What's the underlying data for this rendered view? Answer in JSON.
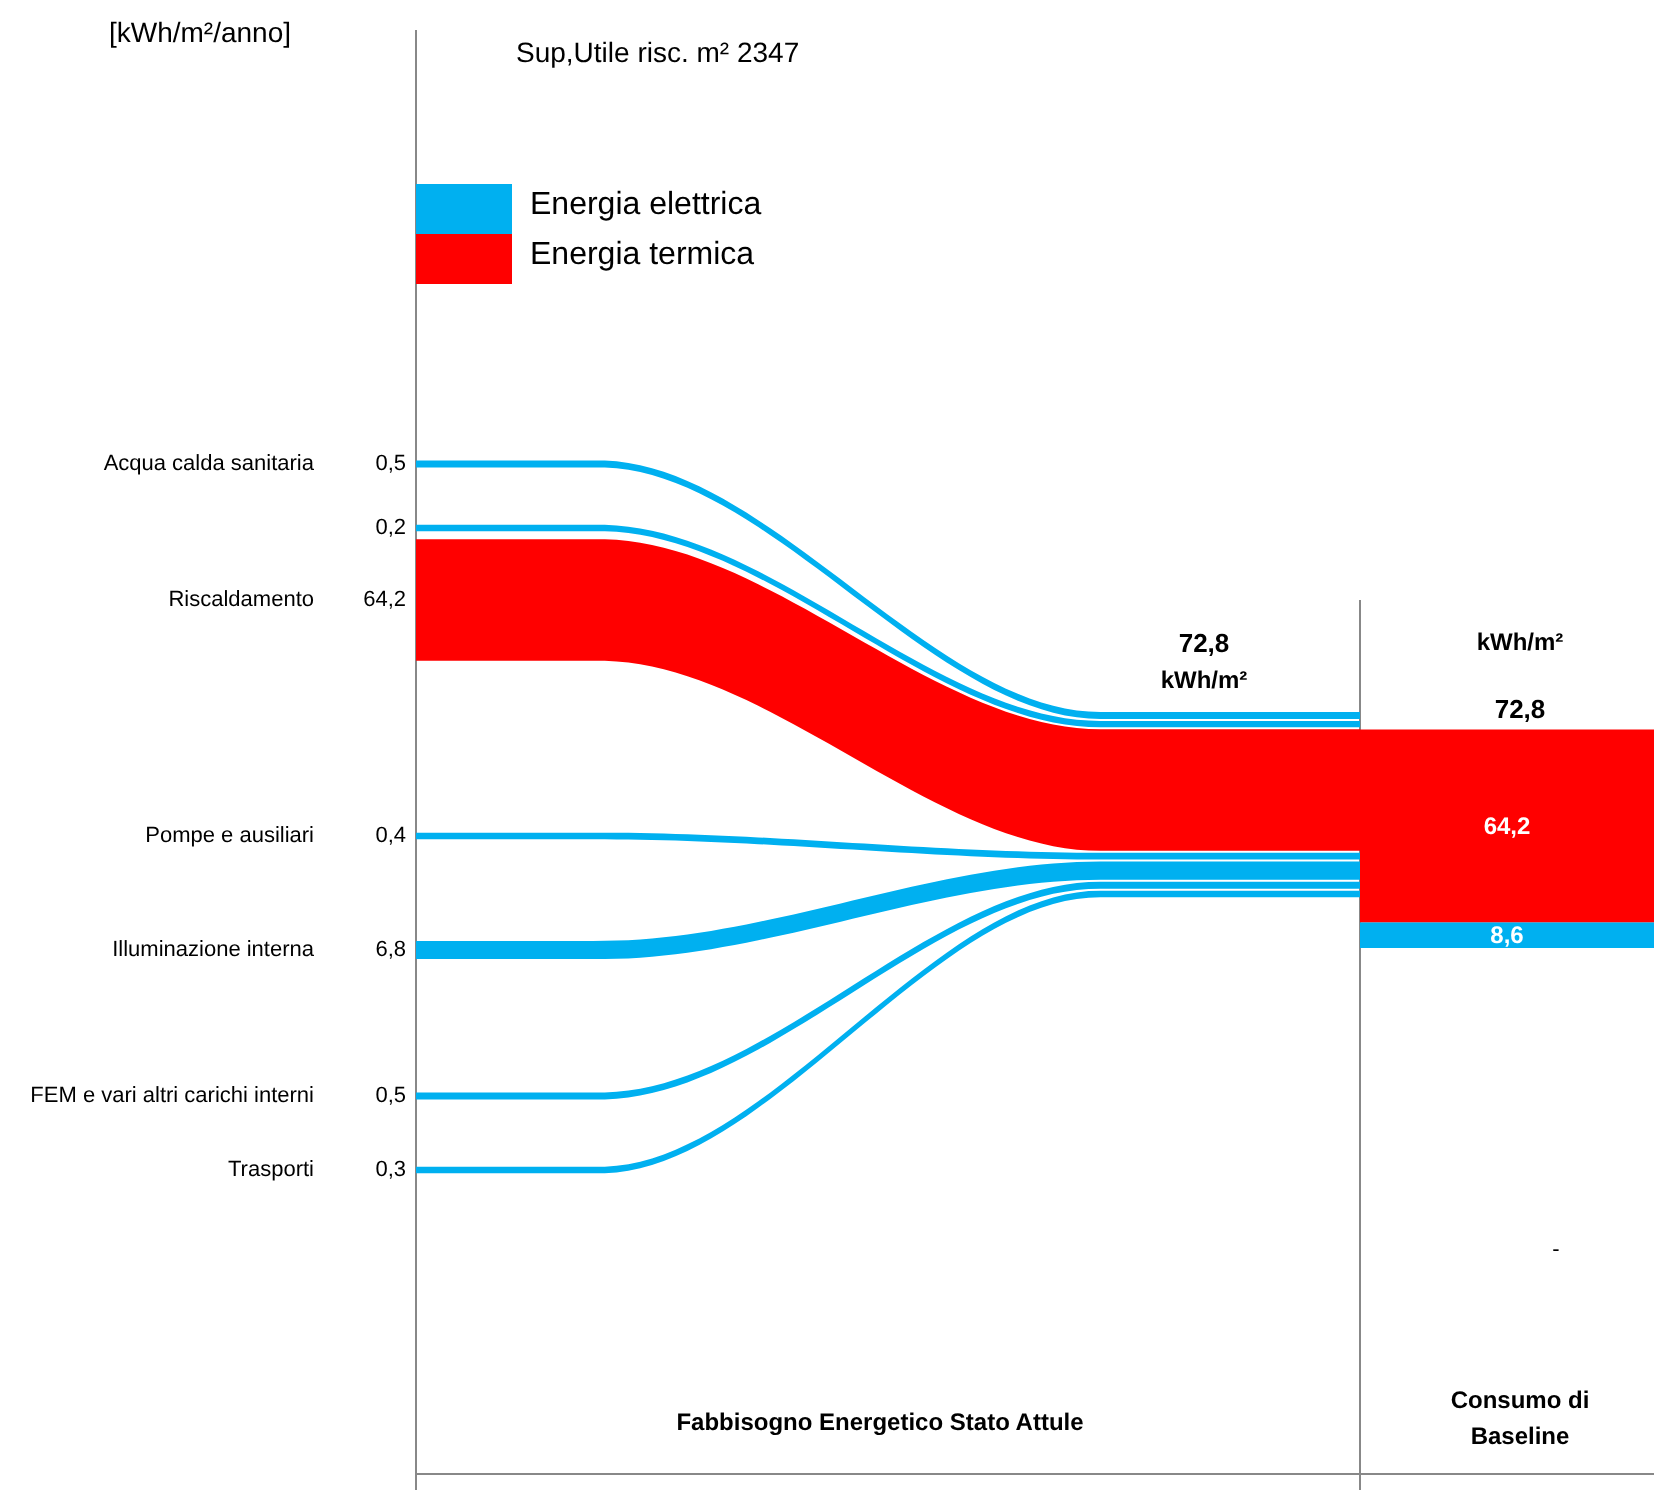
{
  "chart_data": [
    {
      "type": "other",
      "title": "Sup,Utile risc. m² 2347",
      "ylabel": "[kWh/m²/anno]",
      "xlabel": "Fabbisogno Energetico Stato Attule",
      "categories": [
        "Acqua calda sanitaria",
        null,
        "Riscaldamento",
        "Pompe e ausiliari",
        "Illuminazione interna",
        "FEM e vari altri carichi interni",
        "Trasporti"
      ],
      "values": [
        0.5,
        0.2,
        64.2,
        0.4,
        6.8,
        0.5,
        0.3
      ],
      "value_labels": [
        "0,5",
        "0,2",
        "64,2",
        "0,4",
        "6,8",
        "0,5",
        "0,3"
      ],
      "colors": [
        "#00b0f0",
        "#00b0f0",
        "#ff0000",
        "#00b0f0",
        "#00b0f0",
        "#00b0f0",
        "#00b0f0"
      ],
      "totals": [
        "72,8"
      ],
      "annotations": [
        "kWh/m²"
      ]
    },
    {
      "type": "bar",
      "stacked": true,
      "xlabel": "Consumo di Baseline",
      "categories": [
        null
      ],
      "series": [
        {
          "name": "Energia elettrica",
          "color": "#00b0f0",
          "values": [
            8.6
          ],
          "value_labels": [
            "8,6"
          ]
        },
        {
          "name": "Energia termica",
          "color": "#ff0000",
          "values": [
            64.2
          ],
          "value_labels": [
            "64,2"
          ]
        }
      ],
      "totals": [
        "72,8"
      ],
      "annotations": [
        "kWh/m²",
        "-"
      ],
      "legend": "top left"
    }
  ]
}
